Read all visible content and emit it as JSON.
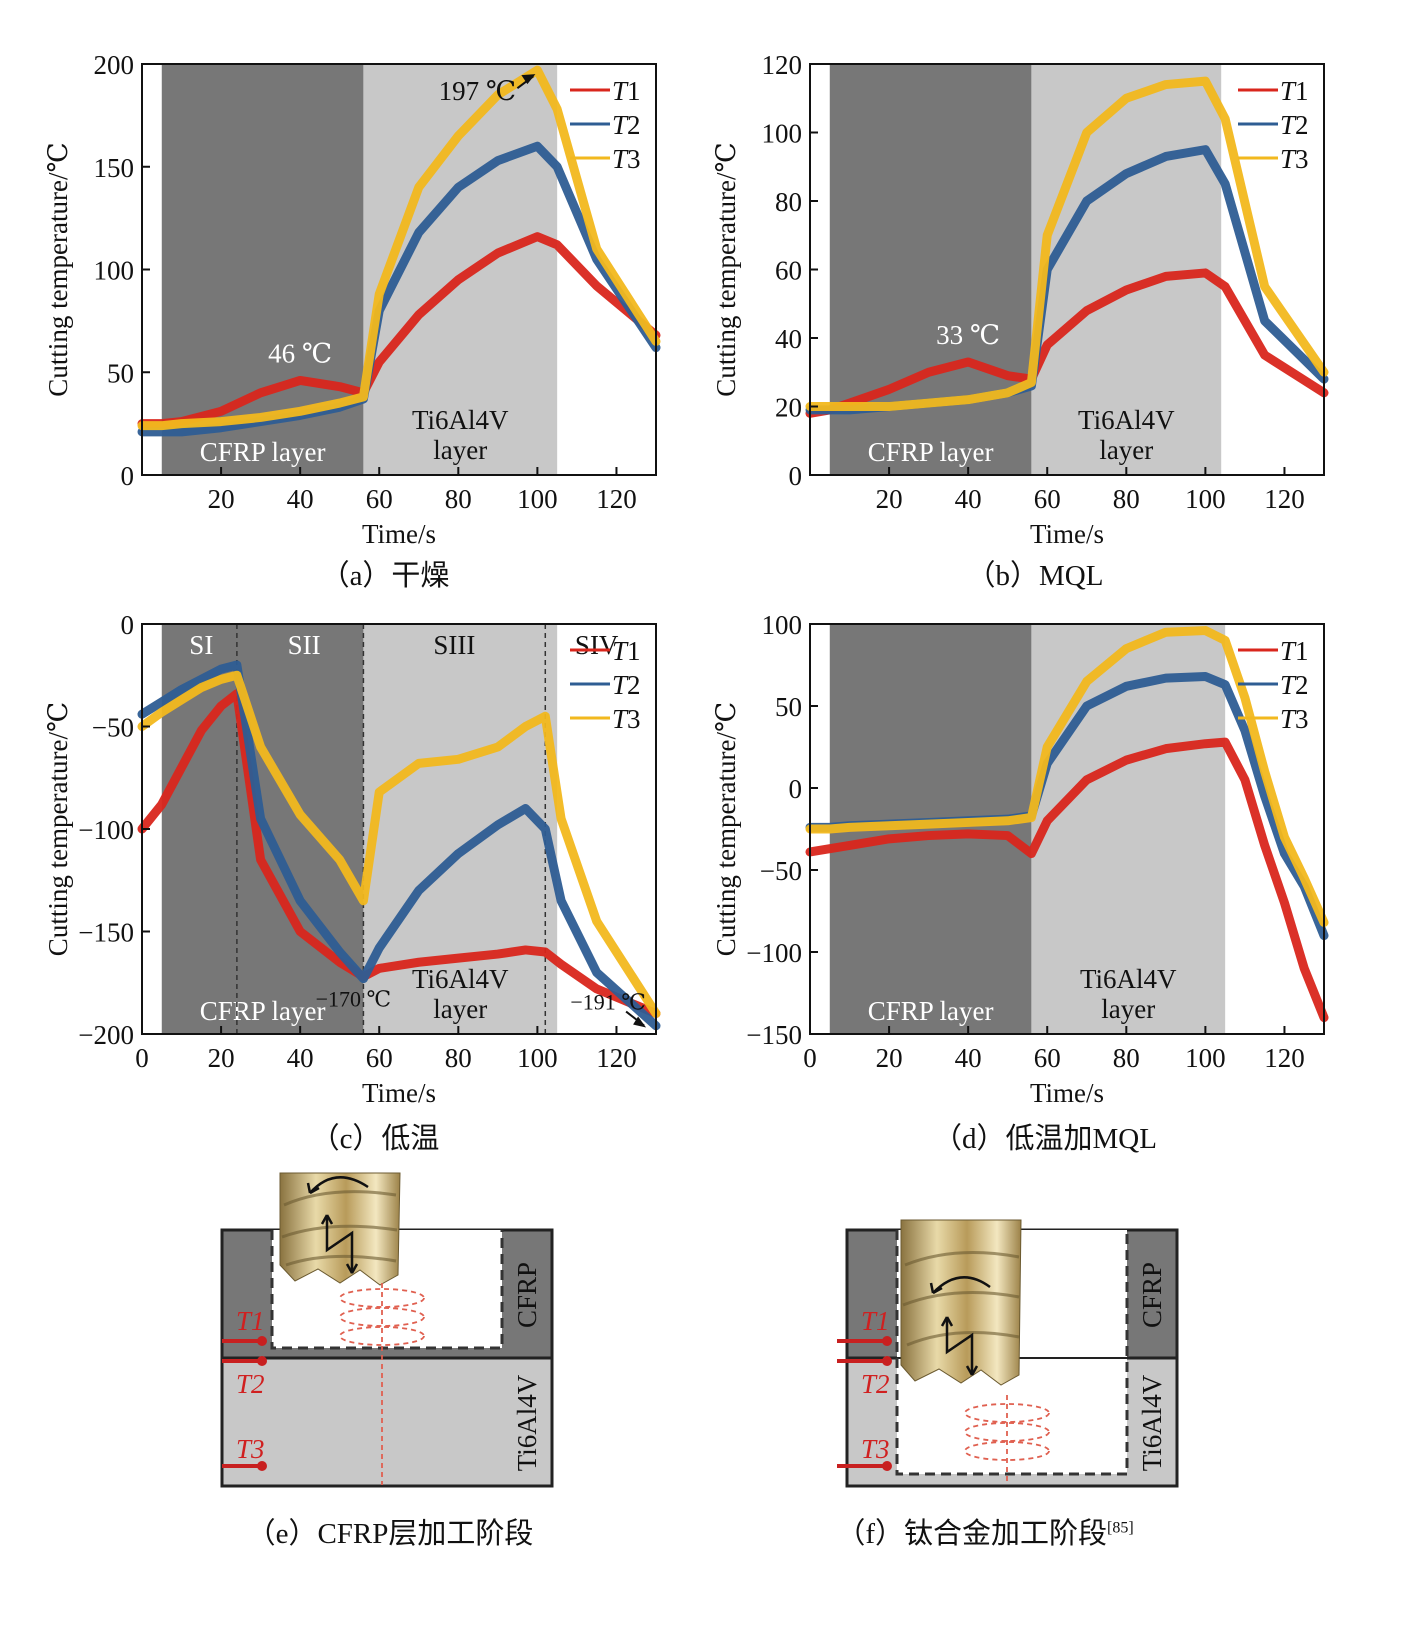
{
  "colors": {
    "T1": "#d9261c",
    "T2": "#2e5d93",
    "T3": "#f2b81e",
    "dark_band": "#777777",
    "light_band": "#c8c8c8"
  },
  "charts": [
    {
      "id": "a",
      "caption": "（a）干燥",
      "xlabel": "Time/s",
      "ylabel": "Cutting temperature/℃",
      "ylim": [
        0,
        200
      ],
      "yticks": [
        0,
        50,
        100,
        150,
        200
      ],
      "xlim": [
        0,
        130
      ],
      "xticks": [
        20,
        40,
        60,
        80,
        100,
        120
      ],
      "bands": [
        {
          "from": 5,
          "to": 56,
          "shade": "dark",
          "label": "CFRP layer"
        },
        {
          "from": 56,
          "to": 105,
          "shade": "light",
          "label": "Ti6Al4V layer"
        }
      ],
      "annotations": [
        {
          "text": "46 ℃",
          "x": 40,
          "y": 46
        },
        {
          "text": "197 ℃",
          "x": 100,
          "y": 197,
          "arrow": true
        }
      ],
      "legend": [
        "T1",
        "T2",
        "T3"
      ]
    },
    {
      "id": "b",
      "caption": "（b）MQL",
      "xlabel": "Time/s",
      "ylabel": "Cutting temperature/℃",
      "ylim": [
        0,
        120
      ],
      "yticks": [
        0,
        20,
        40,
        60,
        80,
        100,
        120
      ],
      "xlim": [
        0,
        130
      ],
      "xticks": [
        20,
        40,
        60,
        80,
        100,
        120
      ],
      "bands": [
        {
          "from": 5,
          "to": 56,
          "shade": "dark",
          "label": "CFRP layer"
        },
        {
          "from": 56,
          "to": 104,
          "shade": "light",
          "label": "Ti6Al4V layer"
        }
      ],
      "annotations": [
        {
          "text": "33 ℃",
          "x": 40,
          "y": 33
        }
      ],
      "legend": [
        "T1",
        "T2",
        "T3"
      ]
    },
    {
      "id": "c",
      "caption": "（c）低温",
      "xlabel": "Time/s",
      "ylabel": "Cutting temperature/℃",
      "ylim": [
        -200,
        0
      ],
      "yticks": [
        -200,
        -150,
        -100,
        -50,
        0
      ],
      "ytick_labels": [
        "−200",
        "−150",
        "−100",
        "−50",
        "0"
      ],
      "xlim": [
        0,
        130
      ],
      "xticks": [
        0,
        20,
        40,
        60,
        80,
        100,
        120
      ],
      "bands": [
        {
          "from": 5,
          "to": 56,
          "shade": "dark",
          "label": "CFRP layer"
        },
        {
          "from": 56,
          "to": 105,
          "shade": "light",
          "label": "Ti6Al4V layer"
        }
      ],
      "stages": [
        {
          "label": "SI",
          "x": 15
        },
        {
          "label": "SII",
          "x": 41
        },
        {
          "label": "SIII",
          "x": 79
        },
        {
          "label": "SIV",
          "x": 115
        }
      ],
      "stage_lines": [
        24,
        56,
        102
      ],
      "annotations": [
        {
          "text": "−170 ℃",
          "x": 56,
          "y": -170
        },
        {
          "text": "−191 ℃",
          "x": 128,
          "y": -191,
          "arrow": true
        }
      ],
      "legend": [
        "T1",
        "T2",
        "T3"
      ]
    },
    {
      "id": "d",
      "caption": "（d）低温加MQL",
      "xlabel": "Time/s",
      "ylabel": "Cutting temperature/℃",
      "ylim": [
        -150,
        100
      ],
      "yticks": [
        -150,
        -100,
        -50,
        0,
        50,
        100
      ],
      "ytick_labels": [
        "−150",
        "−100",
        "−50",
        "0",
        "50",
        "100"
      ],
      "xlim": [
        0,
        130
      ],
      "xticks": [
        0,
        20,
        40,
        60,
        80,
        100,
        120
      ],
      "bands": [
        {
          "from": 5,
          "to": 56,
          "shade": "dark",
          "label": "CFRP layer"
        },
        {
          "from": 56,
          "to": 105,
          "shade": "light",
          "label": "Ti6Al4V layer"
        }
      ],
      "annotations": [],
      "legend": [
        "T1",
        "T2",
        "T3"
      ]
    }
  ],
  "chart_data": [
    {
      "type": "line",
      "panel": "a",
      "x": [
        0,
        5,
        10,
        20,
        30,
        40,
        50,
        56,
        60,
        70,
        80,
        90,
        100,
        105,
        115,
        130
      ],
      "series": [
        {
          "name": "T1",
          "values": [
            25,
            25,
            26,
            31,
            40,
            46,
            43,
            40,
            55,
            78,
            95,
            108,
            116,
            112,
            92,
            68
          ]
        },
        {
          "name": "T2",
          "values": [
            21,
            21,
            21,
            23,
            26,
            29,
            33,
            37,
            80,
            118,
            140,
            153,
            160,
            150,
            105,
            62
          ]
        },
        {
          "name": "T3",
          "values": [
            24,
            24,
            25,
            26,
            28,
            31,
            35,
            38,
            88,
            140,
            165,
            185,
            197,
            178,
            110,
            65
          ]
        }
      ]
    },
    {
      "type": "line",
      "panel": "b",
      "x": [
        0,
        5,
        10,
        20,
        30,
        40,
        50,
        56,
        60,
        70,
        80,
        90,
        100,
        105,
        115,
        130
      ],
      "series": [
        {
          "name": "T1",
          "values": [
            18,
            19,
            21,
            25,
            30,
            33,
            29,
            28,
            38,
            48,
            54,
            58,
            59,
            55,
            35,
            24
          ]
        },
        {
          "name": "T2",
          "values": [
            19,
            19,
            19,
            20,
            21,
            22,
            24,
            26,
            60,
            80,
            88,
            93,
            95,
            85,
            45,
            28
          ]
        },
        {
          "name": "T3",
          "values": [
            20,
            20,
            20,
            20,
            21,
            22,
            24,
            27,
            70,
            100,
            110,
            114,
            115,
            104,
            55,
            30
          ]
        }
      ]
    },
    {
      "type": "line",
      "panel": "c",
      "x": [
        0,
        5,
        10,
        15,
        20,
        24,
        30,
        40,
        50,
        56,
        60,
        70,
        80,
        90,
        97,
        102,
        106,
        115,
        130
      ],
      "series": [
        {
          "name": "T1",
          "values": [
            -100,
            -88,
            -70,
            -52,
            -40,
            -34,
            -115,
            -150,
            -165,
            -172,
            -168,
            -165,
            -163,
            -161,
            -159,
            -160,
            -166,
            -178,
            -190
          ]
        },
        {
          "name": "T2",
          "values": [
            -44,
            -38,
            -32,
            -27,
            -22,
            -20,
            -95,
            -135,
            -160,
            -173,
            -158,
            -130,
            -112,
            -98,
            -90,
            -100,
            -135,
            -170,
            -196
          ]
        },
        {
          "name": "T3",
          "values": [
            -50,
            -43,
            -37,
            -31,
            -27,
            -25,
            -60,
            -93,
            -115,
            -135,
            -82,
            -68,
            -66,
            -60,
            -50,
            -45,
            -95,
            -145,
            -190
          ]
        }
      ]
    },
    {
      "type": "line",
      "panel": "d",
      "x": [
        0,
        5,
        10,
        20,
        30,
        40,
        50,
        56,
        60,
        70,
        80,
        90,
        100,
        105,
        110,
        115,
        120,
        125,
        130
      ],
      "series": [
        {
          "name": "T1",
          "values": [
            -39,
            -37,
            -35,
            -31,
            -29,
            -28,
            -29,
            -40,
            -20,
            5,
            17,
            24,
            27,
            28,
            5,
            -35,
            -70,
            -110,
            -140
          ]
        },
        {
          "name": "T2",
          "values": [
            -24,
            -24,
            -23,
            -22,
            -21,
            -20,
            -19,
            -17,
            15,
            50,
            62,
            67,
            68,
            63,
            35,
            -5,
            -40,
            -60,
            -90
          ]
        },
        {
          "name": "T3",
          "values": [
            -25,
            -25,
            -24,
            -23,
            -22,
            -21,
            -20,
            -18,
            25,
            65,
            85,
            95,
            96,
            90,
            55,
            10,
            -30,
            -55,
            -82
          ]
        }
      ]
    }
  ],
  "diagrams": [
    {
      "id": "e",
      "caption": "（e）CFRP层加工阶段",
      "label_top": "CFRP",
      "label_bottom": "Ti6Al4V",
      "sensors": [
        "T1",
        "T2",
        "T3"
      ]
    },
    {
      "id": "f",
      "caption": "（f）钛合金加工阶段",
      "caption_sup": "[85]",
      "label_top": "CFRP",
      "label_bottom": "Ti6Al4V",
      "sensors": [
        "T1",
        "T2",
        "T3"
      ]
    }
  ]
}
